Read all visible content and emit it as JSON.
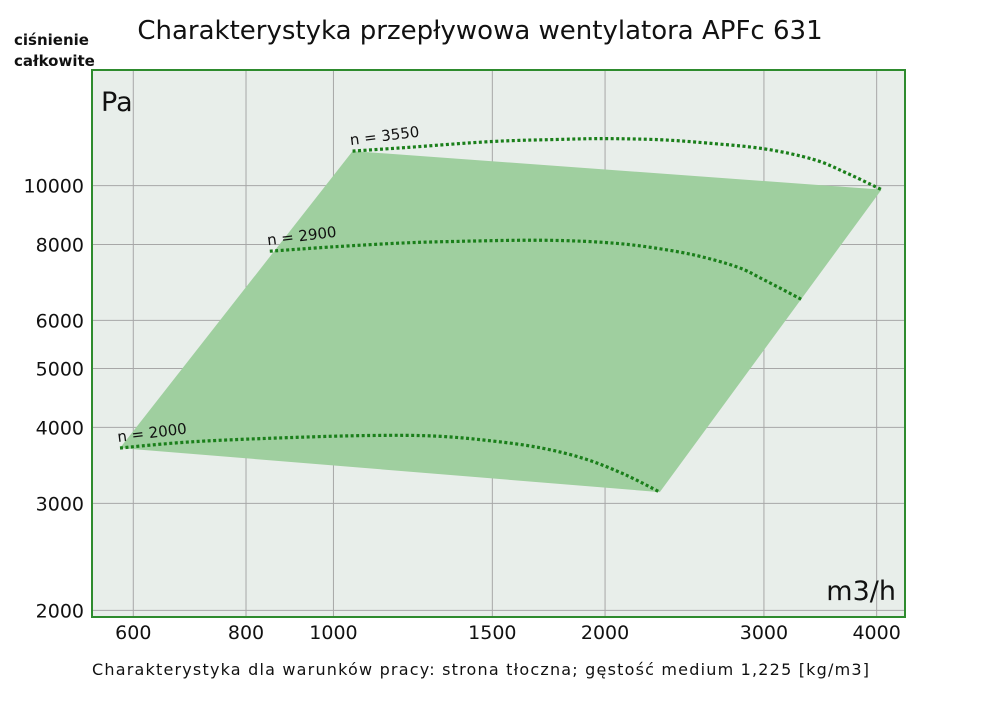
{
  "chart_data": {
    "type": "line",
    "title": "Charakterystyka przepływowa wentylatora APFc 631",
    "ylabel": "ciśnienie całkowite",
    "y_unit": "Pa",
    "x_unit": "m3/h",
    "x_scale": "log",
    "y_scale": "log",
    "xlim": [
      540,
      4300
    ],
    "ylim": [
      1950,
      15500
    ],
    "x_ticks": [
      600,
      800,
      1000,
      1500,
      2000,
      3000,
      4000
    ],
    "y_ticks": [
      2000,
      3000,
      4000,
      5000,
      6000,
      8000,
      10000
    ],
    "grid": true,
    "colors": {
      "curve": "#1a7f1a",
      "region": "#9fcf9f",
      "plot_bg": "#e8eeea",
      "frame": "#2e8b2e",
      "grid": "#a7a7a7"
    },
    "series": [
      {
        "name": "n = 2000",
        "x": [
          580,
          700,
          900,
          1100,
          1300,
          1500,
          1700,
          1900,
          2100,
          2300
        ],
        "y": [
          3700,
          3790,
          3850,
          3880,
          3870,
          3800,
          3700,
          3550,
          3350,
          3130
        ]
      },
      {
        "name": "n = 2900",
        "x": [
          850,
          1000,
          1200,
          1400,
          1600,
          1800,
          2000,
          2200,
          2500,
          2800,
          3000,
          3300
        ],
        "y": [
          7800,
          7930,
          8050,
          8100,
          8130,
          8120,
          8060,
          7950,
          7700,
          7350,
          7000,
          6500
        ]
      },
      {
        "name": "n = 3550",
        "x": [
          1050,
          1200,
          1500,
          1800,
          2000,
          2300,
          2600,
          3000,
          3400,
          3700,
          4050
        ],
        "y": [
          11400,
          11550,
          11820,
          11920,
          11950,
          11900,
          11750,
          11500,
          11050,
          10500,
          9850
        ]
      }
    ],
    "operating_region": {
      "x": [
        580,
        1050,
        4050,
        2300
      ],
      "y": [
        3700,
        11400,
        9850,
        3130
      ]
    }
  },
  "footnote": "Charakterystyka dla warunków pracy: strona tłoczna; gęstość medium 1,225 [kg/m3]"
}
